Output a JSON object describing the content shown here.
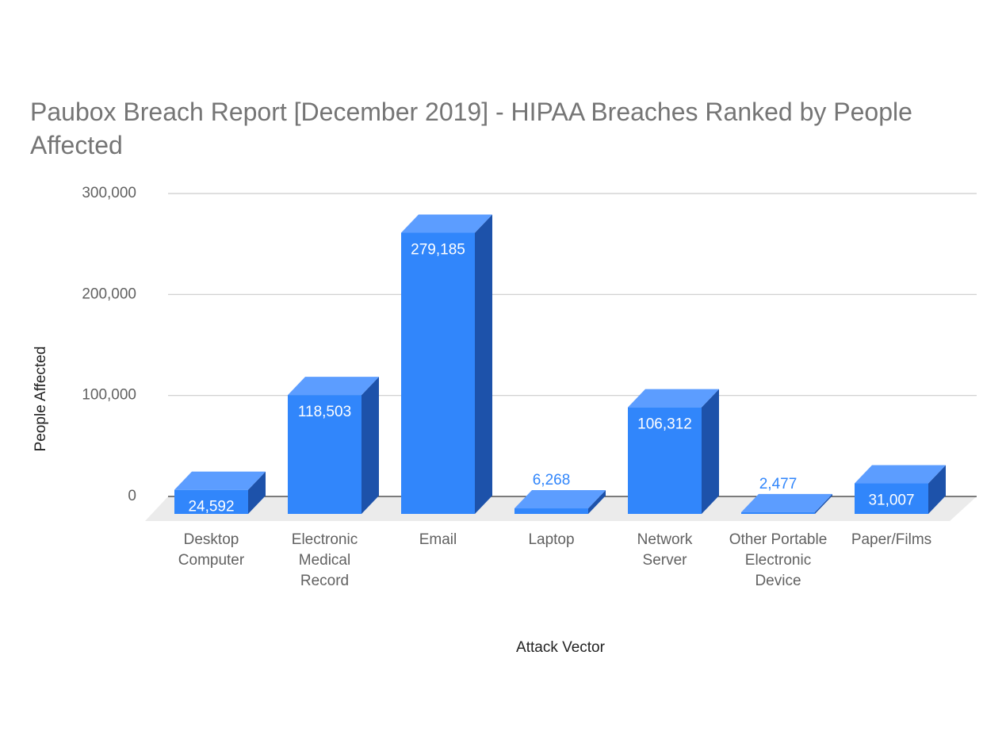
{
  "chart_data": {
    "type": "bar3d",
    "title": "Paubox Breach Report [December 2019] - HIPAA Breaches Ranked by People Affected",
    "x_label": "Attack Vector",
    "y_label": "People Affected",
    "categories": [
      "Desktop Computer",
      "Electronic Medical Record",
      "Email",
      "Laptop",
      "Network Server",
      "Other Portable Electronic Device",
      "Paper/Films"
    ],
    "values": [
      24592,
      118503,
      279185,
      6268,
      106312,
      2477,
      31007
    ],
    "value_labels": [
      "24,592",
      "118,503",
      "279,185",
      "6,268",
      "106,312",
      "2,477",
      "31,007"
    ],
    "color": "#3186fb",
    "ylim": [
      0,
      300000
    ],
    "yticks": [
      0,
      {
        "value": 100000,
        "label": "100,000"
      },
      {
        "value": 200000,
        "label": "200,000"
      },
      {
        "value": 300000,
        "label": "300,000"
      }
    ],
    "grid": true
  }
}
